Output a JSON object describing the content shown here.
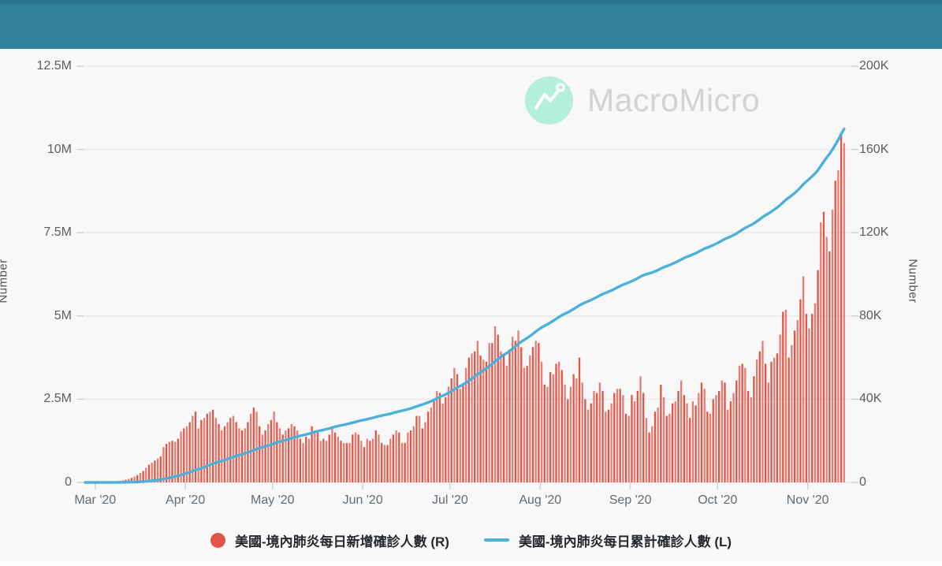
{
  "header": {
    "background": "#33809d"
  },
  "watermark": {
    "brand": "MacroMicro",
    "logo_bg": "#b4efdc",
    "text_color": "#d2d2d2"
  },
  "axes": {
    "left": {
      "label": "Number",
      "ticks": [
        "12.5M",
        "10M",
        "7.5M",
        "5M",
        "2.5M",
        "0"
      ]
    },
    "right": {
      "label": "Number",
      "ticks": [
        "200K",
        "160K",
        "120K",
        "80K",
        "40K",
        "0"
      ]
    },
    "x": {
      "ticks": [
        "Mar '20",
        "Apr '20",
        "May '20",
        "Jun '20",
        "Jul '20",
        "Aug '20",
        "Sep '20",
        "Oct '20",
        "Nov '20"
      ]
    }
  },
  "legend": [
    {
      "swatch": "dot",
      "color": "#e05548",
      "label": "美國-境內肺炎每日新增確診人數 (R)"
    },
    {
      "swatch": "line",
      "color": "#4ab1da",
      "label": "美國-境內肺炎每日累計確診人數 (L)"
    }
  ],
  "chart_data": {
    "type": "bar+line",
    "title": "",
    "x_domain": {
      "start": "2020-02-26",
      "end": "2020-11-13"
    },
    "x_tick_labels": [
      "Mar '20",
      "Apr '20",
      "May '20",
      "Jun '20",
      "Jul '20",
      "Aug '20",
      "Sep '20",
      "Oct '20",
      "Nov '20"
    ],
    "month_start_day_index": [
      4,
      35,
      65,
      96,
      126,
      157,
      188,
      218,
      249
    ],
    "ylim_left_millions": [
      0,
      12.5
    ],
    "yticks_left_millions": [
      12.5,
      10,
      7.5,
      5,
      2.5,
      0
    ],
    "ylim_right_thousands": [
      0,
      200
    ],
    "yticks_right_thousands": [
      200,
      160,
      120,
      80,
      40,
      0
    ],
    "grid": true,
    "legend_position": "bottom",
    "series": [
      {
        "name": "美國-境內肺炎每日新增確診人數 (R)",
        "type": "bar",
        "axis": "right",
        "unit": "thousands_per_day",
        "color": "#e05548",
        "values": [
          0,
          0,
          0.1,
          0.1,
          0.1,
          0.1,
          0.2,
          0.2,
          0.3,
          0.4,
          0.5,
          0.6,
          0.8,
          1.0,
          1.3,
          1.7,
          2.2,
          2.8,
          3.5,
          4.5,
          5.5,
          7,
          8.5,
          9.5,
          10.5,
          11.5,
          12.5,
          17,
          18.5,
          19.5,
          20,
          19.5,
          21,
          24.5,
          26,
          27,
          29,
          32,
          34,
          26,
          30,
          31,
          33,
          34,
          35,
          31,
          28,
          25,
          27,
          29,
          31,
          32,
          29,
          26,
          25,
          26,
          29,
          33,
          36,
          34,
          27,
          23,
          25,
          28,
          30,
          34,
          29,
          26,
          23,
          25,
          26,
          28,
          27,
          25,
          21,
          19,
          22,
          21,
          27,
          25,
          24,
          20,
          21,
          20,
          23,
          26,
          24,
          22,
          20,
          19,
          19,
          19,
          23,
          24,
          23,
          20,
          17,
          21,
          20,
          21,
          25,
          23,
          19,
          18,
          18,
          21,
          23,
          25,
          24,
          19,
          19,
          24,
          25,
          27,
          32,
          32,
          26,
          29,
          34,
          36,
          39,
          44,
          43,
          38,
          41,
          46,
          50,
          55,
          52,
          45,
          47,
          55,
          60,
          62,
          63,
          68,
          61,
          59,
          58,
          67,
          67,
          75,
          71,
          63,
          61,
          56,
          64,
          70,
          68,
          73,
          65,
          55,
          56,
          61,
          65,
          68,
          67,
          58,
          47,
          46,
          53,
          52,
          57,
          58,
          54,
          47,
          40,
          46,
          52,
          50,
          60,
          48,
          40,
          35,
          38,
          44,
          43,
          48,
          44,
          34,
          35,
          38,
          43,
          45,
          45,
          42,
          33,
          32,
          42,
          39,
          44,
          51,
          43,
          31,
          24,
          27,
          34,
          36,
          47,
          41,
          32,
          33,
          38,
          39,
          44,
          49,
          42,
          38,
          31,
          39,
          37,
          43,
          48,
          45,
          34,
          33,
          40,
          42,
          44,
          49,
          48,
          35,
          39,
          43,
          49,
          56,
          57,
          55,
          44,
          41,
          51,
          59,
          63,
          68,
          57,
          48,
          58,
          60,
          62,
          71,
          82,
          83,
          60,
          66,
          73,
          78,
          88,
          99,
          81,
          74,
          81,
          86,
          102,
          125,
          130,
          118,
          111,
          131,
          145,
          150,
          168,
          163
        ]
      },
      {
        "name": "美國-境內肺炎每日累計確診人數 (L)",
        "type": "line",
        "axis": "left",
        "unit": "millions",
        "color": "#4ab1da",
        "derivation": "cumulative_sum_of_daily_series",
        "monthly_checkpoints_millions": {
          "Mar '20": 0.0,
          "Apr '20": 0.25,
          "May '20": 1.14,
          "Jun '20": 1.86,
          "Jul '20": 2.69,
          "Aug '20": 4.6,
          "Sep '20": 6.01,
          "Oct '20": 7.17,
          "Nov '20": 9.04,
          "end": 10.6
        }
      }
    ]
  }
}
